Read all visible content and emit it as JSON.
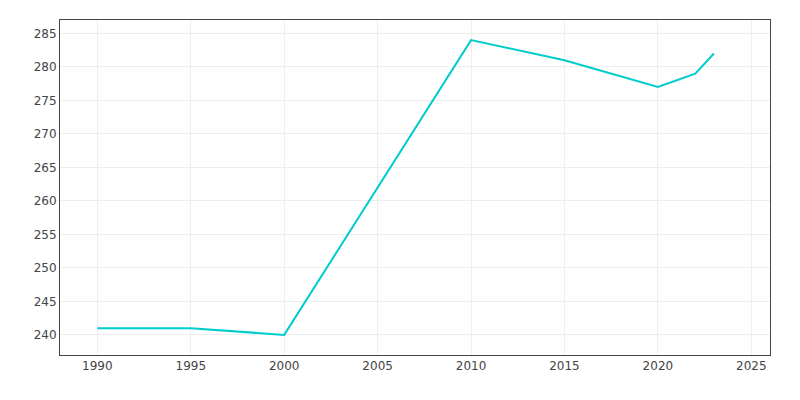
{
  "chart_data": {
    "type": "line",
    "x": [
      1990,
      1995,
      2000,
      2010,
      2015,
      2020,
      2022,
      2023
    ],
    "values": [
      241,
      241,
      240,
      284,
      281,
      277,
      279,
      282
    ],
    "color": "#00CCCC",
    "xlim": [
      1988,
      2026
    ],
    "ylim": [
      237,
      287
    ],
    "xticks": [
      1990,
      1995,
      2000,
      2005,
      2010,
      2015,
      2020,
      2025
    ],
    "yticks": [
      240,
      245,
      250,
      255,
      260,
      265,
      270,
      275,
      280,
      285
    ],
    "grid": true
  }
}
